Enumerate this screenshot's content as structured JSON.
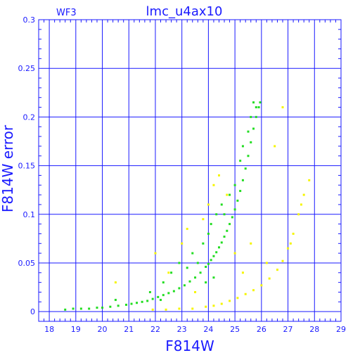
{
  "chart_data": {
    "type": "scatter",
    "title": "lmc_u4ax10",
    "tag": "WF3",
    "xlabel": "F814W",
    "ylabel": "F814W error",
    "xlim": [
      17.6,
      29
    ],
    "ylim": [
      -0.01,
      0.3
    ],
    "xticks": [
      18,
      19,
      20,
      21,
      22,
      23,
      24,
      25,
      26,
      27,
      28,
      29
    ],
    "yticks": [
      0,
      0.05,
      0.1,
      0.15,
      0.2,
      0.25,
      0.3
    ],
    "ytick_labels": [
      "0",
      "0.05",
      "0.1",
      "0.15",
      "0.2",
      "0.25",
      "0.3"
    ],
    "grid": true,
    "colors": {
      "axis": "#1a1aff",
      "green": "#22dd22",
      "yellow": "#f5f500"
    },
    "series": [
      {
        "color": "green",
        "points": [
          [
            18.6,
            0.002
          ],
          [
            18.9,
            0.003
          ],
          [
            19.2,
            0.003
          ],
          [
            19.5,
            0.003
          ],
          [
            19.8,
            0.004
          ],
          [
            20.0,
            0.004
          ],
          [
            20.3,
            0.005
          ],
          [
            20.6,
            0.006
          ],
          [
            20.9,
            0.007
          ],
          [
            21.1,
            0.008
          ],
          [
            21.3,
            0.009
          ],
          [
            21.5,
            0.01
          ],
          [
            21.7,
            0.011
          ],
          [
            21.9,
            0.013
          ],
          [
            22.1,
            0.015
          ],
          [
            22.3,
            0.017
          ],
          [
            22.5,
            0.019
          ],
          [
            22.7,
            0.021
          ],
          [
            22.9,
            0.024
          ],
          [
            23.1,
            0.027
          ],
          [
            23.3,
            0.031
          ],
          [
            23.5,
            0.035
          ],
          [
            23.7,
            0.04
          ],
          [
            23.9,
            0.046
          ],
          [
            24.0,
            0.049
          ],
          [
            24.1,
            0.053
          ],
          [
            24.2,
            0.057
          ],
          [
            24.3,
            0.061
          ],
          [
            24.4,
            0.066
          ],
          [
            24.5,
            0.071
          ],
          [
            24.6,
            0.077
          ],
          [
            24.7,
            0.083
          ],
          [
            24.8,
            0.09
          ],
          [
            24.9,
            0.097
          ],
          [
            25.0,
            0.105
          ],
          [
            25.1,
            0.114
          ],
          [
            25.2,
            0.124
          ],
          [
            25.3,
            0.135
          ],
          [
            25.4,
            0.147
          ],
          [
            25.5,
            0.16
          ],
          [
            25.6,
            0.174
          ],
          [
            25.7,
            0.188
          ],
          [
            25.8,
            0.2
          ],
          [
            25.9,
            0.21
          ],
          [
            25.95,
            0.215
          ],
          [
            20.5,
            0.012
          ],
          [
            21.8,
            0.02
          ],
          [
            22.3,
            0.03
          ],
          [
            22.6,
            0.04
          ],
          [
            22.9,
            0.05
          ],
          [
            23.2,
            0.045
          ],
          [
            23.4,
            0.06
          ],
          [
            23.6,
            0.05
          ],
          [
            23.8,
            0.07
          ],
          [
            24.0,
            0.08
          ],
          [
            24.1,
            0.09
          ],
          [
            24.3,
            0.1
          ],
          [
            24.5,
            0.11
          ],
          [
            24.6,
            0.1
          ],
          [
            24.8,
            0.12
          ],
          [
            25.0,
            0.13
          ],
          [
            25.2,
            0.155
          ],
          [
            25.3,
            0.17
          ],
          [
            25.5,
            0.185
          ],
          [
            25.6,
            0.2
          ],
          [
            25.8,
            0.21
          ],
          [
            25.7,
            0.215
          ],
          [
            24.2,
            0.035
          ],
          [
            23.9,
            0.03
          ],
          [
            22.2,
            0.012
          ]
        ]
      },
      {
        "color": "yellow",
        "points": [
          [
            21.9,
            0.002
          ],
          [
            22.4,
            0.002
          ],
          [
            22.9,
            0.003
          ],
          [
            23.4,
            0.003
          ],
          [
            23.9,
            0.005
          ],
          [
            24.2,
            0.006
          ],
          [
            24.5,
            0.008
          ],
          [
            24.8,
            0.011
          ],
          [
            25.1,
            0.014
          ],
          [
            25.4,
            0.018
          ],
          [
            25.7,
            0.022
          ],
          [
            26.0,
            0.027
          ],
          [
            26.3,
            0.034
          ],
          [
            26.6,
            0.043
          ],
          [
            26.8,
            0.052
          ],
          [
            27.0,
            0.065
          ],
          [
            27.2,
            0.08
          ],
          [
            27.4,
            0.1
          ],
          [
            27.6,
            0.12
          ],
          [
            27.8,
            0.135
          ],
          [
            20.5,
            0.03
          ],
          [
            22.0,
            0.06
          ],
          [
            22.5,
            0.04
          ],
          [
            23.0,
            0.07
          ],
          [
            23.2,
            0.085
          ],
          [
            23.5,
            0.02
          ],
          [
            23.8,
            0.095
          ],
          [
            24.0,
            0.11
          ],
          [
            24.2,
            0.13
          ],
          [
            24.4,
            0.14
          ],
          [
            24.7,
            0.12
          ],
          [
            25.0,
            0.06
          ],
          [
            25.3,
            0.04
          ],
          [
            25.6,
            0.07
          ],
          [
            26.2,
            0.05
          ],
          [
            26.5,
            0.17
          ],
          [
            26.8,
            0.21
          ],
          [
            27.1,
            0.07
          ],
          [
            27.5,
            0.11
          ]
        ]
      }
    ]
  }
}
